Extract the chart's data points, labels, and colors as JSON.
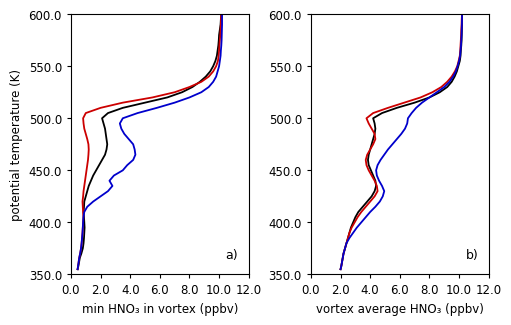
{
  "ylim": [
    350,
    600
  ],
  "yticks": [
    350.0,
    400.0,
    450.0,
    500.0,
    550.0,
    600.0
  ],
  "ylabel": "potential temperature (K)",
  "panel_a": {
    "xlabel": "min HNO₃ in vortex (ppbv)",
    "xlim": [
      0,
      12
    ],
    "xticks": [
      0.0,
      2.0,
      4.0,
      6.0,
      8.0,
      10.0,
      12.0
    ],
    "label": "a)",
    "black": {
      "theta": [
        355,
        358,
        362,
        366,
        370,
        375,
        380,
        385,
        390,
        395,
        400,
        405,
        410,
        415,
        420,
        425,
        430,
        435,
        440,
        445,
        450,
        455,
        460,
        465,
        470,
        475,
        480,
        485,
        490,
        495,
        500,
        505,
        510,
        515,
        520,
        525,
        530,
        535,
        540,
        545,
        550,
        555,
        560,
        565,
        570,
        575,
        580,
        585,
        590,
        595,
        600
      ],
      "hno3": [
        0.45,
        0.5,
        0.55,
        0.6,
        0.7,
        0.8,
        0.85,
        0.88,
        0.9,
        0.92,
        0.9,
        0.88,
        0.85,
        0.88,
        0.9,
        1.0,
        1.1,
        1.2,
        1.35,
        1.5,
        1.7,
        1.9,
        2.1,
        2.3,
        2.4,
        2.45,
        2.4,
        2.35,
        2.3,
        2.2,
        2.1,
        2.5,
        3.5,
        5.0,
        6.5,
        7.5,
        8.2,
        8.7,
        9.1,
        9.4,
        9.6,
        9.75,
        9.85,
        9.9,
        9.95,
        9.98,
        10.0,
        10.05,
        10.1,
        10.12,
        10.15
      ]
    },
    "red": {
      "theta": [
        355,
        358,
        362,
        366,
        370,
        375,
        380,
        385,
        390,
        395,
        400,
        405,
        410,
        415,
        420,
        425,
        430,
        435,
        440,
        445,
        450,
        455,
        460,
        465,
        470,
        475,
        480,
        485,
        490,
        495,
        500,
        505,
        510,
        515,
        520,
        525,
        530,
        535,
        540,
        545,
        550,
        555,
        560,
        565,
        570,
        575,
        580,
        585,
        590,
        595,
        600
      ],
      "hno3": [
        0.45,
        0.48,
        0.52,
        0.56,
        0.62,
        0.68,
        0.72,
        0.75,
        0.78,
        0.8,
        0.82,
        0.84,
        0.82,
        0.8,
        0.78,
        0.82,
        0.85,
        0.9,
        0.95,
        1.0,
        1.05,
        1.1,
        1.15,
        1.18,
        1.2,
        1.18,
        1.1,
        1.0,
        0.9,
        0.85,
        0.82,
        1.0,
        2.0,
        3.5,
        5.5,
        7.0,
        8.0,
        8.8,
        9.3,
        9.6,
        9.8,
        9.92,
        9.97,
        10.0,
        10.02,
        10.05,
        10.08,
        10.1,
        10.12,
        10.13,
        10.15
      ]
    },
    "blue": {
      "theta": [
        355,
        358,
        362,
        366,
        370,
        375,
        380,
        385,
        390,
        395,
        400,
        405,
        410,
        415,
        420,
        425,
        430,
        435,
        440,
        445,
        450,
        455,
        460,
        465,
        470,
        475,
        480,
        485,
        490,
        495,
        500,
        505,
        510,
        515,
        520,
        525,
        530,
        535,
        540,
        545,
        550,
        555,
        560,
        565,
        570,
        575,
        580,
        585,
        590,
        595,
        600
      ],
      "hno3": [
        0.45,
        0.48,
        0.52,
        0.56,
        0.62,
        0.68,
        0.72,
        0.75,
        0.78,
        0.8,
        0.82,
        0.84,
        0.9,
        1.1,
        1.5,
        2.0,
        2.5,
        2.8,
        2.6,
        2.9,
        3.5,
        3.8,
        4.2,
        4.35,
        4.3,
        4.2,
        3.9,
        3.6,
        3.4,
        3.3,
        3.5,
        4.5,
        5.8,
        7.0,
        8.0,
        8.8,
        9.3,
        9.6,
        9.8,
        9.9,
        10.0,
        10.05,
        10.1,
        10.12,
        10.15,
        10.17,
        10.18,
        10.19,
        10.2,
        10.2,
        10.2
      ]
    }
  },
  "panel_b": {
    "xlabel": "vortex average HNO₃ (ppbv)",
    "xlim": [
      0,
      12
    ],
    "xticks": [
      0.0,
      2.0,
      4.0,
      6.0,
      8.0,
      10.0,
      12.0
    ],
    "label": "b)",
    "black": {
      "theta": [
        355,
        358,
        362,
        366,
        370,
        375,
        380,
        385,
        390,
        395,
        400,
        405,
        410,
        415,
        420,
        425,
        430,
        435,
        440,
        445,
        450,
        455,
        460,
        465,
        470,
        475,
        480,
        485,
        490,
        495,
        500,
        505,
        510,
        515,
        520,
        525,
        530,
        535,
        540,
        545,
        550,
        555,
        560,
        565,
        570,
        575,
        580,
        585,
        590,
        595,
        600
      ],
      "hno3": [
        2.0,
        2.05,
        2.1,
        2.15,
        2.2,
        2.3,
        2.4,
        2.5,
        2.6,
        2.7,
        2.85,
        3.0,
        3.2,
        3.5,
        3.8,
        4.1,
        4.3,
        4.4,
        4.35,
        4.2,
        4.05,
        3.9,
        3.85,
        3.9,
        4.0,
        4.1,
        4.2,
        4.3,
        4.35,
        4.3,
        4.2,
        4.8,
        5.8,
        7.0,
        8.0,
        8.7,
        9.2,
        9.5,
        9.7,
        9.85,
        9.95,
        10.05,
        10.1,
        10.12,
        10.15,
        10.17,
        10.18,
        10.19,
        10.2,
        10.2,
        10.2
      ]
    },
    "red": {
      "theta": [
        355,
        358,
        362,
        366,
        370,
        375,
        380,
        385,
        390,
        395,
        400,
        405,
        410,
        415,
        420,
        425,
        430,
        435,
        440,
        445,
        450,
        455,
        460,
        465,
        470,
        475,
        480,
        485,
        490,
        495,
        500,
        505,
        510,
        515,
        520,
        525,
        530,
        535,
        540,
        545,
        550,
        555,
        560,
        565,
        570,
        575,
        580,
        585,
        590,
        595,
        600
      ],
      "hno3": [
        2.0,
        2.05,
        2.1,
        2.15,
        2.2,
        2.3,
        2.4,
        2.5,
        2.6,
        2.75,
        2.95,
        3.15,
        3.4,
        3.7,
        4.0,
        4.3,
        4.5,
        4.45,
        4.3,
        4.1,
        3.9,
        3.75,
        3.7,
        3.8,
        4.0,
        4.2,
        4.35,
        4.3,
        4.1,
        3.9,
        3.75,
        4.2,
        5.2,
        6.3,
        7.4,
        8.2,
        8.8,
        9.2,
        9.5,
        9.72,
        9.88,
        9.97,
        10.05,
        10.08,
        10.1,
        10.12,
        10.14,
        10.15,
        10.17,
        10.18,
        10.2
      ]
    },
    "blue": {
      "theta": [
        355,
        358,
        362,
        366,
        370,
        375,
        380,
        385,
        390,
        395,
        400,
        405,
        410,
        415,
        420,
        425,
        430,
        435,
        440,
        445,
        450,
        455,
        460,
        465,
        470,
        475,
        480,
        485,
        490,
        495,
        500,
        505,
        510,
        515,
        520,
        525,
        530,
        535,
        540,
        545,
        550,
        555,
        560,
        565,
        570,
        575,
        580,
        585,
        590,
        595,
        600
      ],
      "hno3": [
        2.0,
        2.05,
        2.1,
        2.15,
        2.2,
        2.3,
        2.4,
        2.6,
        2.85,
        3.1,
        3.4,
        3.7,
        4.0,
        4.35,
        4.65,
        4.85,
        4.95,
        4.8,
        4.6,
        4.45,
        4.4,
        4.5,
        4.7,
        4.95,
        5.2,
        5.5,
        5.8,
        6.1,
        6.35,
        6.5,
        6.55,
        6.8,
        7.1,
        7.5,
        8.0,
        8.5,
        9.0,
        9.35,
        9.6,
        9.78,
        9.9,
        10.0,
        10.07,
        10.1,
        10.13,
        10.15,
        10.17,
        10.18,
        10.19,
        10.2,
        10.2
      ]
    }
  },
  "line_colors": {
    "black": "#000000",
    "red": "#cc0000",
    "blue": "#0000cc"
  },
  "line_width": 1.3,
  "background_color": "#ffffff",
  "tick_label_fontsize": 8.5,
  "axis_label_fontsize": 8.5,
  "panel_label_fontsize": 9
}
